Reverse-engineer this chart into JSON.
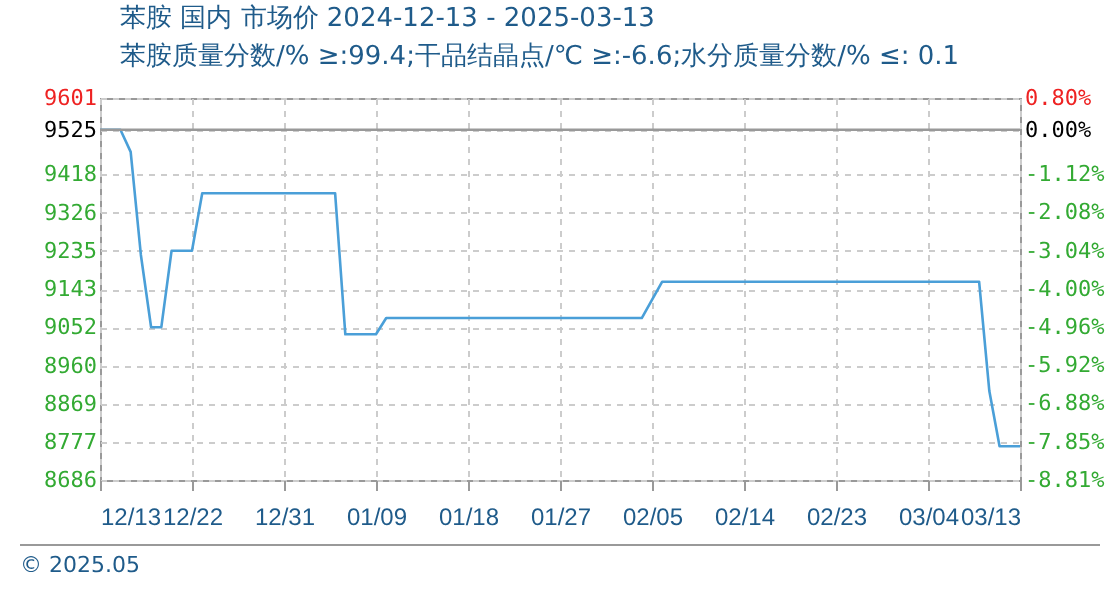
{
  "chart_data": {
    "type": "line",
    "title": "苯胺 国内 市场价 2024-12-13 - 2025-03-13",
    "subtitle": "苯胺质量分数/% ≥:99.4;干品结晶点/℃   ≥:-6.6;水分质量分数/%  ≤: 0.1",
    "annotations": [
      "© 2025.05"
    ],
    "x": [
      "2024-12-13",
      "2024-12-15",
      "2024-12-16",
      "2024-12-17",
      "2024-12-18",
      "2024-12-19",
      "2024-12-20",
      "2024-12-22",
      "2024-12-23",
      "2025-01-05",
      "2025-01-06",
      "2025-01-09",
      "2025-01-10",
      "2025-02-04",
      "2025-02-06",
      "2025-03-09",
      "2025-03-10",
      "2025-03-11",
      "2025-03-13"
    ],
    "series": [
      {
        "color": "#4a9fd8",
        "values": [
          9525,
          9525,
          9472,
          9225,
          9052,
          9052,
          9235,
          9235,
          9373,
          9373,
          9035,
          9035,
          9074,
          9074,
          9161,
          9161,
          8899,
          8767,
          8767
        ]
      }
    ],
    "xlim": [
      "2024-12-13",
      "2025-03-13"
    ],
    "xticks": [
      {
        "value": "2024-12-13",
        "label": "12/13"
      },
      {
        "value": "2024-12-22",
        "label": "12/22"
      },
      {
        "value": "2024-12-31",
        "label": "12/31"
      },
      {
        "value": "2025-01-09",
        "label": "01/09"
      },
      {
        "value": "2025-01-18",
        "label": "01/18"
      },
      {
        "value": "2025-01-27",
        "label": "01/27"
      },
      {
        "value": "2025-02-05",
        "label": "02/05"
      },
      {
        "value": "2025-02-14",
        "label": "02/14"
      },
      {
        "value": "2025-02-23",
        "label": "02/23"
      },
      {
        "value": "2025-03-04",
        "label": "03/04"
      },
      {
        "value": "2025-03-13",
        "label": "03/13"
      }
    ],
    "ylim": [
      8686,
      9601
    ],
    "yticks": [
      9601,
      9525,
      9418,
      9326,
      9235,
      9143,
      9052,
      8960,
      8869,
      8777,
      8686
    ],
    "y2lim": [
      -8.81,
      0.8
    ],
    "y2ticks": [
      {
        "value": 0.8,
        "label": "0.80%"
      },
      {
        "value": 0,
        "label": "0.00%"
      },
      {
        "value": -1.12,
        "label": "-1.12%"
      },
      {
        "value": -2.08,
        "label": "-2.08%"
      },
      {
        "value": -3.04,
        "label": "-3.04%"
      },
      {
        "value": -4.0,
        "label": "-4.00%"
      },
      {
        "value": -4.96,
        "label": "-4.96%"
      },
      {
        "value": -5.92,
        "label": "-5.92%"
      },
      {
        "value": -6.88,
        "label": "-6.88%"
      },
      {
        "value": -7.85,
        "label": "-7.85%"
      },
      {
        "value": -8.81,
        "label": "-8.81%"
      }
    ],
    "ref_lines": [
      {
        "axis": "y2",
        "value": 0,
        "color": "#999999"
      }
    ],
    "grid": true
  }
}
